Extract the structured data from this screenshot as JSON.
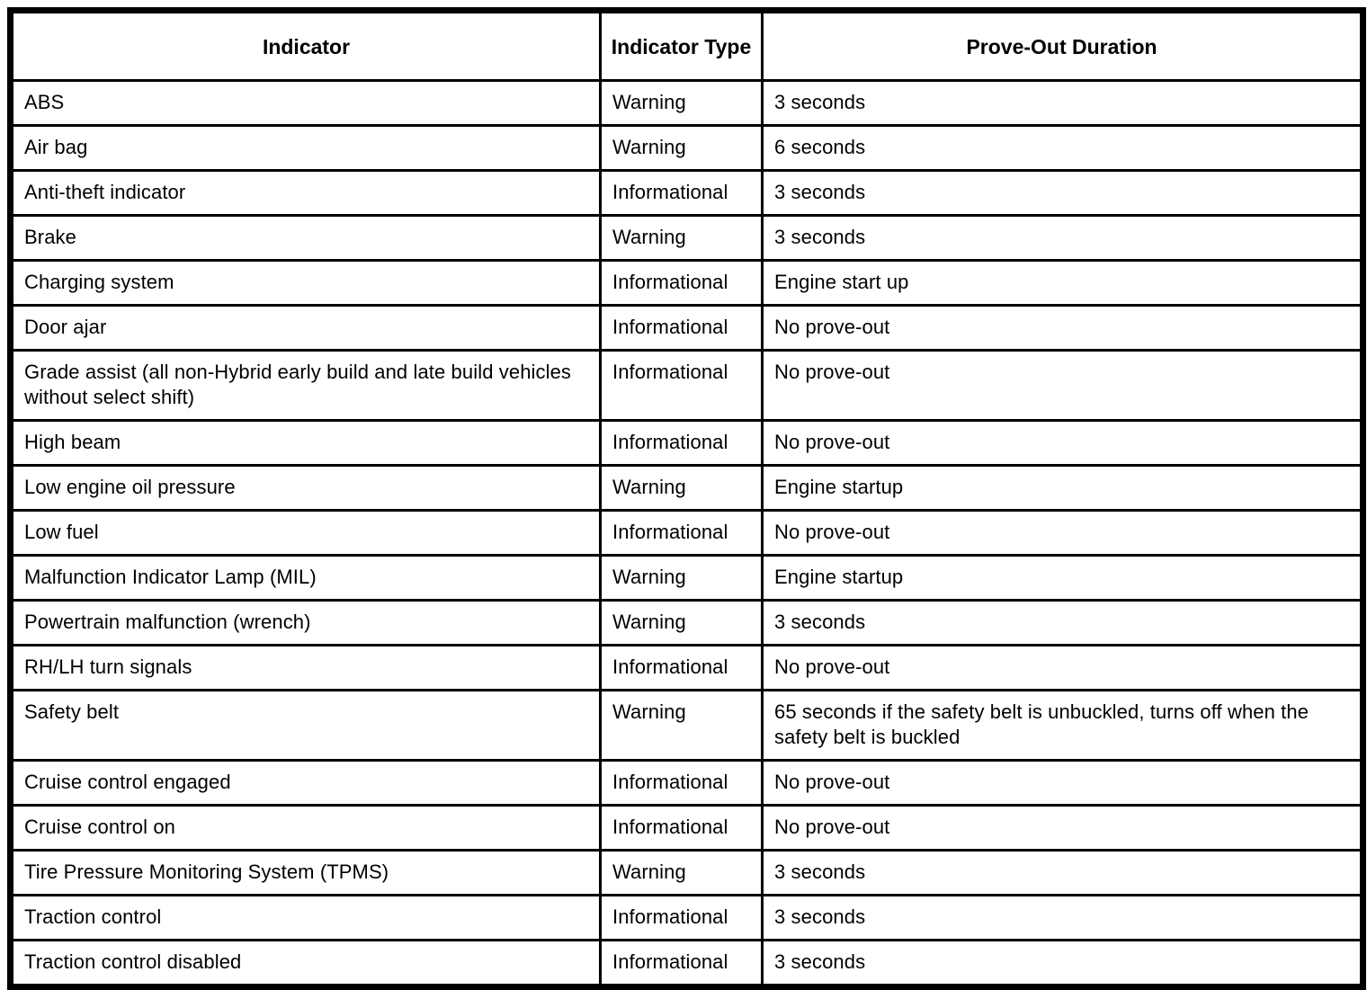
{
  "table": {
    "columns": [
      {
        "label": "Indicator"
      },
      {
        "label": "Indicator Type"
      },
      {
        "label": "Prove-Out Duration"
      }
    ],
    "rows": [
      {
        "indicator": "ABS",
        "type": "Warning",
        "duration": "3 seconds"
      },
      {
        "indicator": "Air bag",
        "type": "Warning",
        "duration": "6 seconds"
      },
      {
        "indicator": "Anti-theft indicator",
        "type": "Informational",
        "duration": "3 seconds"
      },
      {
        "indicator": "Brake",
        "type": "Warning",
        "duration": "3 seconds"
      },
      {
        "indicator": "Charging system",
        "type": "Informational",
        "duration": "Engine start up"
      },
      {
        "indicator": "Door ajar",
        "type": "Informational",
        "duration": "No prove-out"
      },
      {
        "indicator": "Grade assist (all non-Hybrid early build and late build vehicles without select shift)",
        "type": "Informational",
        "duration": "No prove-out"
      },
      {
        "indicator": "High beam",
        "type": "Informational",
        "duration": "No prove-out"
      },
      {
        "indicator": "Low engine oil pressure",
        "type": "Warning",
        "duration": "Engine startup"
      },
      {
        "indicator": "Low fuel",
        "type": "Informational",
        "duration": "No prove-out"
      },
      {
        "indicator": "Malfunction Indicator Lamp (MIL)",
        "type": "Warning",
        "duration": "Engine startup"
      },
      {
        "indicator": "Powertrain malfunction (wrench)",
        "type": "Warning",
        "duration": "3 seconds"
      },
      {
        "indicator": "RH/LH turn signals",
        "type": "Informational",
        "duration": "No prove-out"
      },
      {
        "indicator": "Safety belt",
        "type": "Warning",
        "duration": "65 seconds if the safety belt is unbuckled, turns off when the safety belt is buckled"
      },
      {
        "indicator": "Cruise control engaged",
        "type": "Informational",
        "duration": "No prove-out"
      },
      {
        "indicator": "Cruise control on",
        "type": "Informational",
        "duration": "No prove-out"
      },
      {
        "indicator": "Tire Pressure Monitoring System (TPMS)",
        "type": "Warning",
        "duration": "3 seconds"
      },
      {
        "indicator": "Traction control",
        "type": "Informational",
        "duration": "3 seconds"
      },
      {
        "indicator": "Traction control disabled",
        "type": "Informational",
        "duration": "3 seconds"
      }
    ]
  }
}
